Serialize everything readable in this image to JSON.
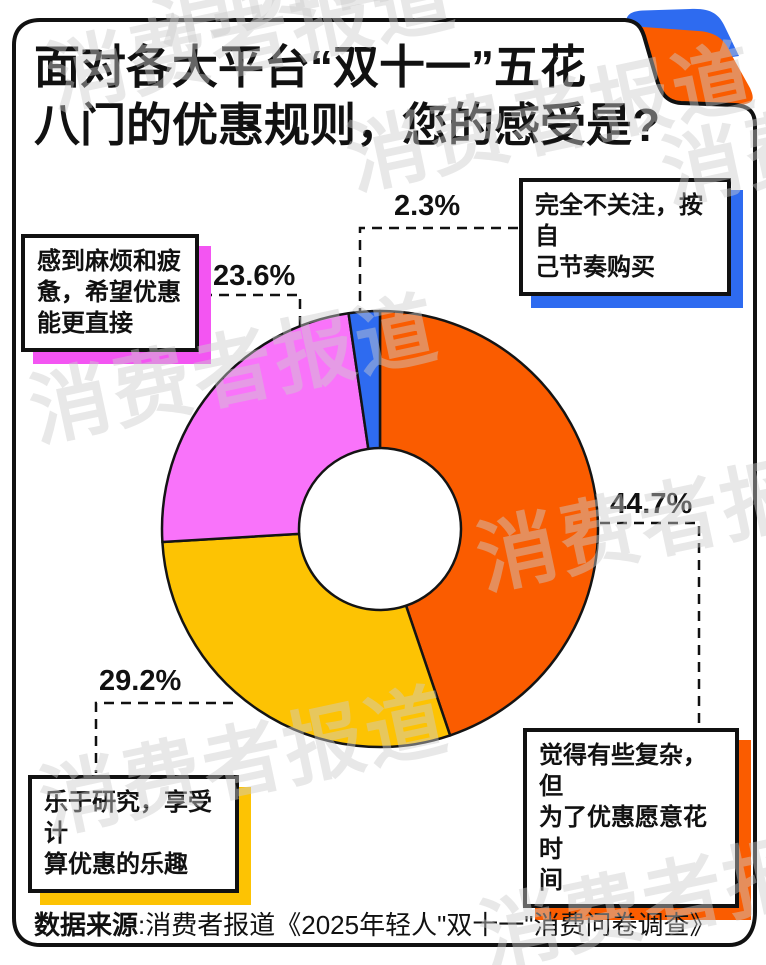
{
  "title": {
    "line1": "面对各大平台“双十一”五花",
    "line2": "八门的优惠规则，您的感受是?"
  },
  "chart_data": {
    "type": "pie",
    "donut": true,
    "start_angle_deg": 0,
    "direction": "clockwise",
    "title": "面对各大平台“双十一”五花八门的优惠规则，您的感受是?",
    "inner_radius_ratio": 0.37,
    "slices": [
      {
        "label": "觉得有些复杂，但为了优惠愿意花时间",
        "pct": 44.7,
        "color": "#FA5C00"
      },
      {
        "label": "乐于研究，享受计算优惠的乐趣",
        "pct": 29.2,
        "color": "#FDC303"
      },
      {
        "label": "感到麻烦和疲惫，希望优惠能更直接",
        "pct": 23.6,
        "color": "#F973FA"
      },
      {
        "label": "完全不关注，按自己节奏购买",
        "pct": 2.3,
        "color": "#2E6BF0"
      }
    ]
  },
  "callouts": {
    "blue": {
      "pct": "2.3%",
      "text": "完全不关注，按自\n己节奏购买",
      "shadow": "#2E6BF0"
    },
    "pink": {
      "pct": "23.6%",
      "text": "感到麻烦和疲\n惫，希望优惠\n能更直接",
      "shadow": "#F355F2"
    },
    "yellow": {
      "pct": "29.2%",
      "text": "乐于研究，享受计\n算优惠的乐趣",
      "shadow": "#FDC303"
    },
    "orange": {
      "pct": "44.7%",
      "text": "觉得有些复杂，但\n为了优惠愿意花时\n间",
      "shadow": "#FA5C00"
    }
  },
  "source": {
    "label": "数据来源",
    "text": ":消费者报道《2025年轻人\"双十一\"消费问卷调查》"
  },
  "watermark": {
    "text": "消费者报道",
    "color": "rgba(205,205,205,0.45)"
  },
  "decor": {
    "flap_blue": "#2E6BF0",
    "flap_orange": "#FA5C00",
    "card_border": "#111111",
    "connector_color": "#111111"
  }
}
